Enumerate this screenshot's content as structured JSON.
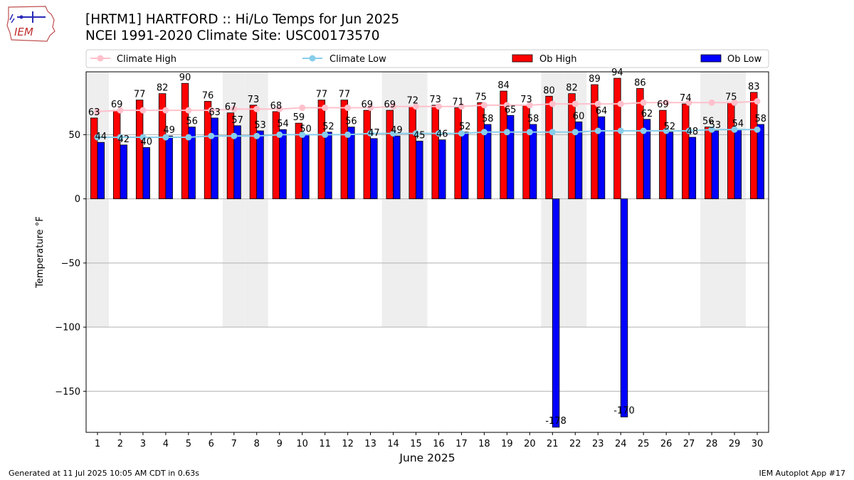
{
  "header": {
    "title_line1": "[HRTM1] HARTFORD :: Hi/Lo Temps for Jun 2025",
    "title_line2": "NCEI 1991-2020 Climate Site: USC00173570",
    "logo_text": "IEM"
  },
  "footer": {
    "left": "Generated at 11 Jul 2025 10:05 AM CDT in 0.63s",
    "right": "IEM Autoplot App #17"
  },
  "chart_data": {
    "type": "bar",
    "xlabel": "June 2025",
    "ylabel": "Temperature °F",
    "ylim": [
      -182,
      99
    ],
    "yticks": [
      -150,
      -100,
      -50,
      0,
      50
    ],
    "ytick_labels": [
      "−150",
      "−100",
      "−50",
      "0",
      "50"
    ],
    "grid": true,
    "legend_placement": "top, above plot",
    "weekend_shading_days": [
      1,
      7,
      8,
      14,
      15,
      21,
      22,
      28,
      29
    ],
    "categories": [
      "1",
      "2",
      "3",
      "4",
      "5",
      "6",
      "7",
      "8",
      "9",
      "10",
      "11",
      "12",
      "13",
      "14",
      "15",
      "16",
      "17",
      "18",
      "19",
      "20",
      "21",
      "22",
      "23",
      "24",
      "25",
      "26",
      "27",
      "28",
      "29",
      "30"
    ],
    "series": [
      {
        "name": "Climate High",
        "kind": "line",
        "color": "#ffc0cb",
        "values": [
          68,
          69,
          69,
          69,
          69,
          69,
          70,
          70,
          70,
          71,
          71,
          71,
          71,
          72,
          72,
          72,
          72,
          73,
          73,
          73,
          74,
          74,
          74,
          74,
          75,
          75,
          75,
          75,
          75,
          76
        ]
      },
      {
        "name": "Climate Low",
        "kind": "line",
        "color": "#87ceeb",
        "values": [
          48,
          48,
          48,
          48,
          48,
          49,
          49,
          49,
          50,
          50,
          50,
          50,
          51,
          51,
          51,
          51,
          51,
          52,
          52,
          52,
          52,
          52,
          53,
          53,
          53,
          53,
          53,
          54,
          54,
          54
        ]
      },
      {
        "name": "Ob High",
        "kind": "bar",
        "color": "#ff0000",
        "values": [
          63,
          69,
          77,
          82,
          90,
          76,
          67,
          73,
          68,
          59,
          77,
          77,
          69,
          69,
          72,
          73,
          71,
          75,
          84,
          73,
          80,
          82,
          89,
          94,
          86,
          69,
          74,
          56,
          75,
          83
        ]
      },
      {
        "name": "Ob Low",
        "kind": "bar",
        "color": "#0000ff",
        "values": [
          44,
          42,
          40,
          49,
          56,
          63,
          57,
          53,
          54,
          50,
          52,
          56,
          47,
          49,
          45,
          46,
          52,
          58,
          65,
          58,
          -178,
          60,
          64,
          -170,
          62,
          52,
          48,
          53,
          54,
          58
        ]
      }
    ]
  }
}
